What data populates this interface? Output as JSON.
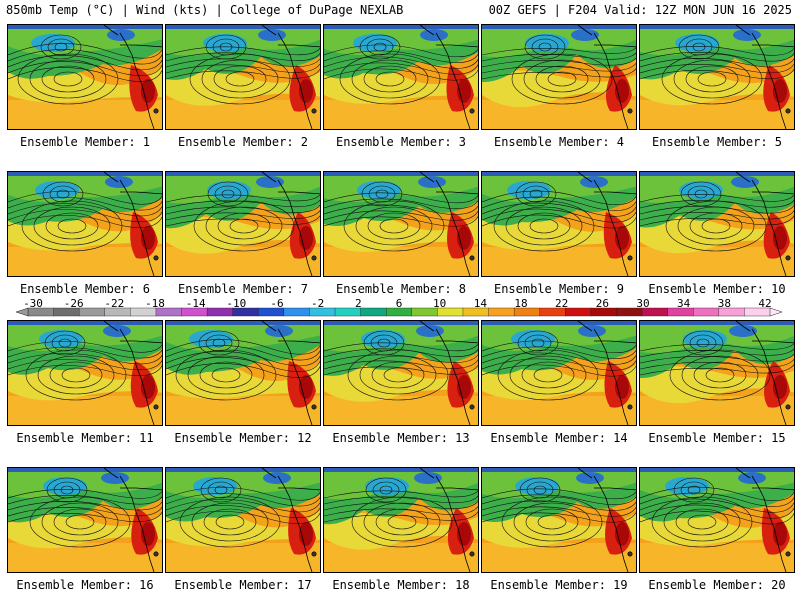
{
  "header": {
    "left": "850mb Temp (°C) | Wind (kts) | College of DuPage NEXLAB",
    "right": "00Z GEFS | F204 Valid: 12Z MON JUN 16 2025"
  },
  "colorbar": {
    "labels": [
      "-30",
      "-26",
      "-22",
      "-18",
      "-14",
      "-10",
      "-6",
      "-2",
      "2",
      "6",
      "10",
      "14",
      "18",
      "22",
      "26",
      "30",
      "34",
      "38",
      "42"
    ],
    "colors": [
      "#8a8a8a",
      "#6e6e6e",
      "#9a9a9a",
      "#b8b8b8",
      "#d2d2d2",
      "#b070c8",
      "#d050d0",
      "#9030b0",
      "#3030a0",
      "#2050d0",
      "#3090f0",
      "#30c0e0",
      "#20d0c0",
      "#10a880",
      "#30b040",
      "#80c830",
      "#e0e030",
      "#f0c020",
      "#f8a020",
      "#f08010",
      "#e84010",
      "#d01010",
      "#a80808",
      "#901010",
      "#c01050",
      "#e040a0",
      "#f070c0",
      "#f8a0d8",
      "#fcd0ec"
    ]
  },
  "panels": [
    {
      "label": "Ensemble Member: 1"
    },
    {
      "label": "Ensemble Member: 2"
    },
    {
      "label": "Ensemble Member: 3"
    },
    {
      "label": "Ensemble Member: 4"
    },
    {
      "label": "Ensemble Member: 5"
    },
    {
      "label": "Ensemble Member: 6"
    },
    {
      "label": "Ensemble Member: 7"
    },
    {
      "label": "Ensemble Member: 8"
    },
    {
      "label": "Ensemble Member: 9"
    },
    {
      "label": "Ensemble Member: 10"
    },
    {
      "label": "Ensemble Member: 11"
    },
    {
      "label": "Ensemble Member: 12"
    },
    {
      "label": "Ensemble Member: 13"
    },
    {
      "label": "Ensemble Member: 14"
    },
    {
      "label": "Ensemble Member: 15"
    },
    {
      "label": "Ensemble Member: 16"
    },
    {
      "label": "Ensemble Member: 17"
    },
    {
      "label": "Ensemble Member: 18"
    },
    {
      "label": "Ensemble Member: 19"
    },
    {
      "label": "Ensemble Member: 20"
    }
  ]
}
